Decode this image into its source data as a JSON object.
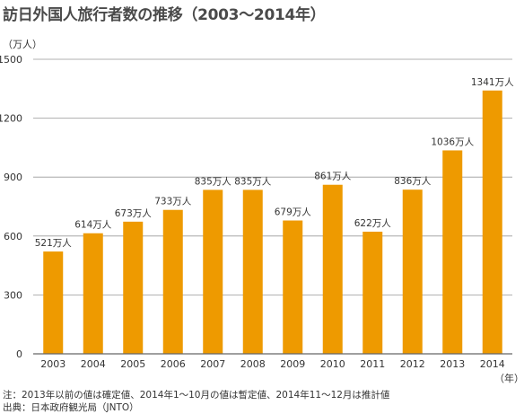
{
  "title": "訪日外国人旅行者数の推移（2003〜2014年）",
  "y_unit": "（万人）",
  "x_unit": "（年）",
  "notes": [
    "注：2013年以前の値は確定値、2014年1〜10月の値は暫定値、2014年11〜12月は推計値",
    "出典：日本政府観光局（JNTO）"
  ],
  "colors": {
    "bar": "#ee9a00",
    "grid": "#999999",
    "axis": "#666666",
    "text": "#333333"
  },
  "chart_data": {
    "type": "bar",
    "categories": [
      "2003",
      "2004",
      "2005",
      "2006",
      "2007",
      "2008",
      "2009",
      "2010",
      "2011",
      "2012",
      "2013",
      "2014"
    ],
    "values": [
      521,
      614,
      673,
      733,
      835,
      835,
      679,
      861,
      622,
      836,
      1036,
      1341
    ],
    "data_labels": [
      "521万人",
      "614万人",
      "673万人",
      "733万人",
      "835万人",
      "835万人",
      "679万人",
      "861万人",
      "622万人",
      "836万人",
      "1036万人",
      "1341万人"
    ],
    "yticks": [
      0,
      300,
      600,
      900,
      1200,
      1500
    ],
    "ylim": [
      0,
      1500
    ],
    "grid": true
  }
}
